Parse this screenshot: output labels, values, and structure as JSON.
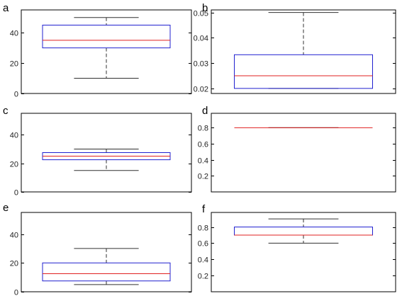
{
  "colors": {
    "box": "#2020d0",
    "median": "#e02020",
    "whisker": "#303030",
    "axes": "#000000"
  },
  "chart_data": [
    {
      "type": "box",
      "panel_label": "a",
      "ylim": [
        0,
        55
      ],
      "yticks": [
        0,
        20,
        40
      ],
      "ytick_labels": [
        "0",
        "20",
        "40"
      ],
      "box": {
        "min": 10,
        "q1": 30,
        "median": 35,
        "q3": 45,
        "max": 50
      }
    },
    {
      "type": "box",
      "panel_label": "b",
      "ylim": [
        0.018,
        0.051
      ],
      "yticks": [
        0.02,
        0.03,
        0.04,
        0.05
      ],
      "ytick_labels": [
        "0.02",
        "0.03",
        "0.04",
        "0.05"
      ],
      "box": {
        "min": 0.02,
        "q1": 0.02,
        "median": 0.025,
        "q3": 0.0333,
        "max": 0.05
      }
    },
    {
      "type": "box",
      "panel_label": "c",
      "ylim": [
        0,
        55
      ],
      "yticks": [
        0,
        20,
        40
      ],
      "ytick_labels": [
        "0",
        "20",
        "40"
      ],
      "box": {
        "min": 15,
        "q1": 22.5,
        "median": 25,
        "q3": 27.5,
        "max": 30
      }
    },
    {
      "type": "box",
      "panel_label": "d",
      "ylim": [
        0,
        0.98
      ],
      "yticks": [
        0.2,
        0.4,
        0.6,
        0.8
      ],
      "ytick_labels": [
        "0.2",
        "0.4",
        "0.6",
        "0.8"
      ],
      "box": {
        "min": 0.8,
        "q1": 0.8,
        "median": 0.8,
        "q3": 0.8,
        "max": 0.8
      }
    },
    {
      "type": "box",
      "panel_label": "e",
      "ylim": [
        0,
        55
      ],
      "yticks": [
        0,
        20,
        40
      ],
      "ytick_labels": [
        "0",
        "20",
        "40"
      ],
      "box": {
        "min": 5,
        "q1": 7.5,
        "median": 12.5,
        "q3": 20,
        "max": 30
      }
    },
    {
      "type": "box",
      "panel_label": "f",
      "ylim": [
        0,
        0.98
      ],
      "yticks": [
        0.2,
        0.4,
        0.6,
        0.8
      ],
      "ytick_labels": [
        "0.2",
        "0.4",
        "0.6",
        "0.8"
      ],
      "box": {
        "min": 0.6,
        "q1": 0.7,
        "median": 0.7,
        "q3": 0.8,
        "max": 0.9
      }
    }
  ]
}
